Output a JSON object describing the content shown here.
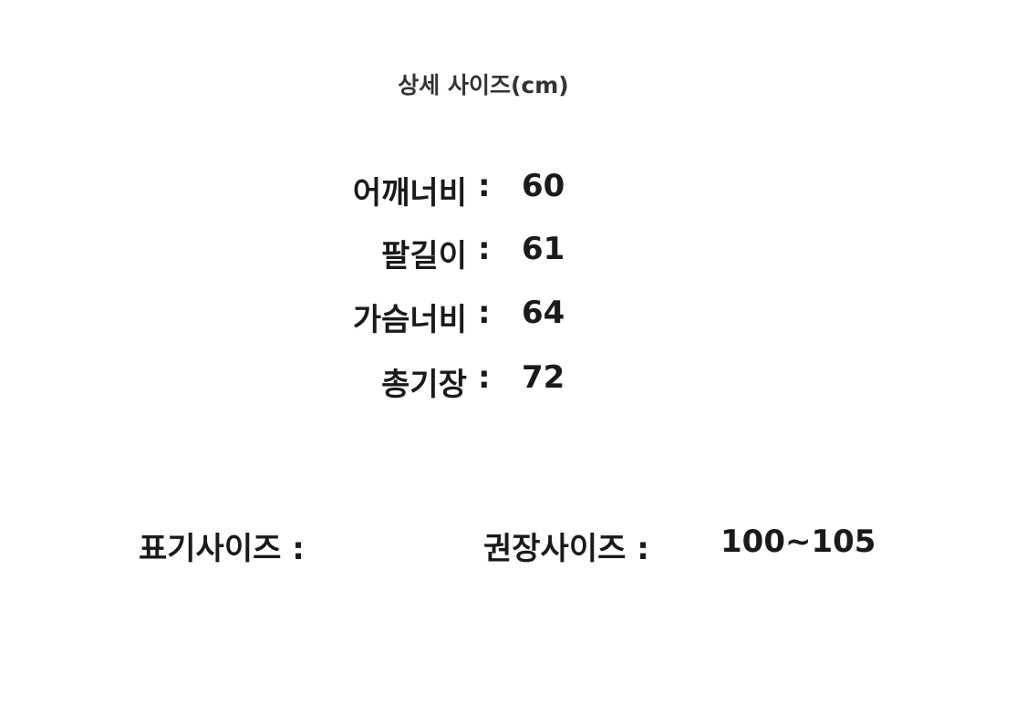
{
  "title": "상세 사이즈(cm)",
  "measurements": [
    {
      "label": "어깨너비",
      "separator": ":",
      "value": "60"
    },
    {
      "label": "팔길이",
      "separator": ":",
      "value": "61"
    },
    {
      "label": "가슴너비",
      "separator": ":",
      "value": "64"
    },
    {
      "label": "총기장",
      "separator": ":",
      "value": "72"
    }
  ],
  "labeled_size": {
    "label": "표기사이즈 :",
    "value": ""
  },
  "recommended_size": {
    "label": "권장사이즈 :",
    "value": "100~105"
  }
}
